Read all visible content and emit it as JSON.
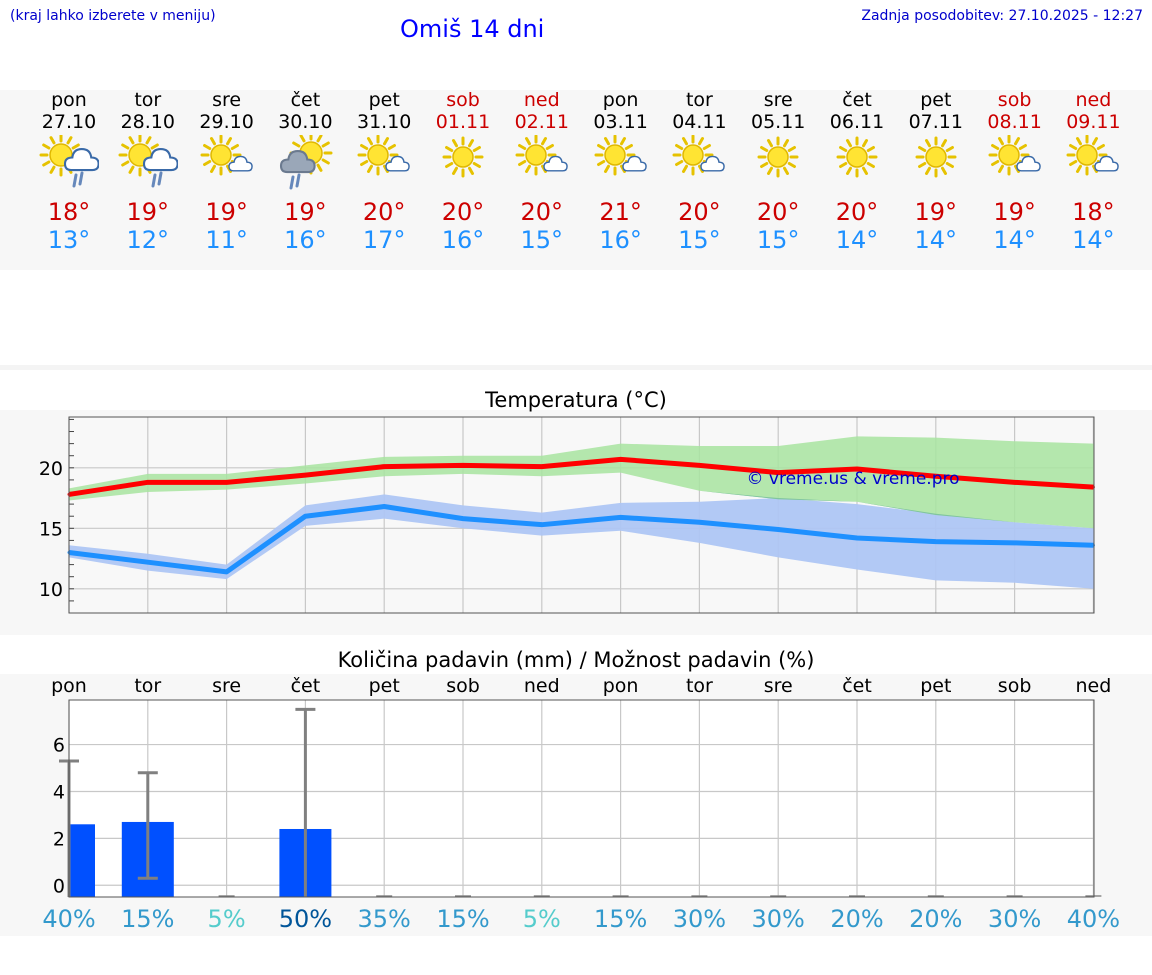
{
  "header": {
    "left_note": "(kraj lahko izberete v meniju)",
    "title": "Omiš 14 dni",
    "updated": "Zadnja posodobitev: 27.10.2025 - 12:27"
  },
  "days": [
    {
      "name": "pon",
      "date": "27.10",
      "weekend": false,
      "icon": "sun-cloud-rain-icon",
      "tmax": "18°",
      "tmin": "13°"
    },
    {
      "name": "tor",
      "date": "28.10",
      "weekend": false,
      "icon": "sun-cloud-rain-icon",
      "tmax": "19°",
      "tmin": "12°"
    },
    {
      "name": "sre",
      "date": "29.10",
      "weekend": false,
      "icon": "sun-small-cloud-icon",
      "tmax": "19°",
      "tmin": "11°"
    },
    {
      "name": "čet",
      "date": "30.10",
      "weekend": false,
      "icon": "cloud-sun-rain-icon",
      "tmax": "19°",
      "tmin": "16°"
    },
    {
      "name": "pet",
      "date": "31.10",
      "weekend": false,
      "icon": "sun-small-cloud-icon",
      "tmax": "20°",
      "tmin": "17°"
    },
    {
      "name": "sob",
      "date": "01.11",
      "weekend": true,
      "icon": "sun-icon",
      "tmax": "20°",
      "tmin": "16°"
    },
    {
      "name": "ned",
      "date": "02.11",
      "weekend": true,
      "icon": "sun-small-cloud-icon",
      "tmax": "20°",
      "tmin": "15°"
    },
    {
      "name": "pon",
      "date": "03.11",
      "weekend": false,
      "icon": "sun-small-cloud-icon",
      "tmax": "21°",
      "tmin": "16°"
    },
    {
      "name": "tor",
      "date": "04.11",
      "weekend": false,
      "icon": "sun-small-cloud-icon",
      "tmax": "20°",
      "tmin": "15°"
    },
    {
      "name": "sre",
      "date": "05.11",
      "weekend": false,
      "icon": "sun-icon",
      "tmax": "20°",
      "tmin": "15°"
    },
    {
      "name": "čet",
      "date": "06.11",
      "weekend": false,
      "icon": "sun-icon",
      "tmax": "20°",
      "tmin": "14°"
    },
    {
      "name": "pet",
      "date": "07.11",
      "weekend": false,
      "icon": "sun-icon",
      "tmax": "19°",
      "tmin": "14°"
    },
    {
      "name": "sob",
      "date": "08.11",
      "weekend": true,
      "icon": "sun-small-cloud-icon",
      "tmax": "19°",
      "tmin": "14°"
    },
    {
      "name": "ned",
      "date": "09.11",
      "weekend": true,
      "icon": "sun-small-cloud-icon",
      "tmax": "18°",
      "tmin": "14°"
    }
  ],
  "colors": {
    "max_line": "#ff0000",
    "max_band": "#a8e4a0",
    "min_line": "#1e90ff",
    "min_band": "#aec6f4",
    "overlap_band": "#80c4a0",
    "precip_bar": "#0050ff",
    "whisker": "#808080",
    "weekend": "#cc0000",
    "tmin_text": "#1e90ff",
    "tmax_text": "#cc0000"
  },
  "chart_data": [
    {
      "type": "line",
      "title": "Temperatura (°C)",
      "watermark": "© vreme.us & vreme.pro",
      "ylim": [
        8,
        24.2
      ],
      "yticks": [
        10,
        15,
        20
      ],
      "grid": true,
      "x": [
        0,
        1,
        2,
        3,
        4,
        5,
        6,
        7,
        8,
        9,
        10,
        11,
        12,
        13
      ],
      "series": [
        {
          "key": "max",
          "values": [
            17.8,
            18.8,
            18.8,
            19.4,
            20.1,
            20.2,
            20.1,
            20.7,
            20.2,
            19.6,
            19.9,
            19.3,
            18.8,
            18.4
          ],
          "band_low": [
            17.3,
            18.0,
            18.2,
            18.7,
            19.3,
            19.5,
            19.3,
            19.6,
            18.1,
            17.4,
            17.2,
            16.1,
            15.5,
            15.0
          ],
          "band_high": [
            18.3,
            19.5,
            19.5,
            20.2,
            20.9,
            21.0,
            21.0,
            22.0,
            21.8,
            21.8,
            22.6,
            22.5,
            22.2,
            22.0
          ]
        },
        {
          "key": "min",
          "values": [
            13.0,
            12.2,
            11.4,
            16.0,
            16.8,
            15.8,
            15.3,
            15.9,
            15.5,
            14.9,
            14.2,
            13.9,
            13.8,
            13.6
          ],
          "band_low": [
            12.6,
            11.5,
            10.8,
            15.2,
            15.8,
            15.0,
            14.4,
            14.8,
            13.8,
            12.6,
            11.6,
            10.7,
            10.5,
            10.0
          ],
          "band_high": [
            13.6,
            12.9,
            12.0,
            16.9,
            17.8,
            16.9,
            16.3,
            17.1,
            17.2,
            17.5,
            17.0,
            16.2,
            15.5,
            15.0
          ]
        }
      ]
    },
    {
      "type": "bar",
      "title": "Količina padavin (mm) / Možnost padavin (%)",
      "categories": [
        "pon",
        "tor",
        "sre",
        "čet",
        "pet",
        "sob",
        "ned",
        "pon",
        "tor",
        "sre",
        "čet",
        "pet",
        "sob",
        "ned"
      ],
      "ylim": [
        -0.5,
        7.9
      ],
      "yticks": [
        0,
        2,
        4,
        6
      ],
      "grid": true,
      "values": [
        2.6,
        2.7,
        0,
        2.4,
        0,
        0,
        0,
        0,
        0,
        0,
        0,
        0,
        0,
        0
      ],
      "whisker_low": [
        null,
        0.3,
        null,
        0,
        null,
        null,
        null,
        null,
        null,
        null,
        null,
        null,
        null,
        null
      ],
      "whisker_high": [
        5.3,
        4.8,
        null,
        7.5,
        null,
        null,
        null,
        null,
        null,
        null,
        null,
        null,
        null,
        null
      ],
      "probability": [
        "40%",
        "15%",
        "5%",
        "50%",
        "35%",
        "15%",
        "5%",
        "15%",
        "30%",
        "30%",
        "20%",
        "20%",
        "30%",
        "40%"
      ],
      "probability_colors": [
        "#3399cc",
        "#3399cc",
        "#55cccc",
        "#005599",
        "#3399cc",
        "#3399cc",
        "#55cccc",
        "#3399cc",
        "#3399cc",
        "#3399cc",
        "#3399cc",
        "#3399cc",
        "#3399cc",
        "#3399cc"
      ]
    }
  ]
}
